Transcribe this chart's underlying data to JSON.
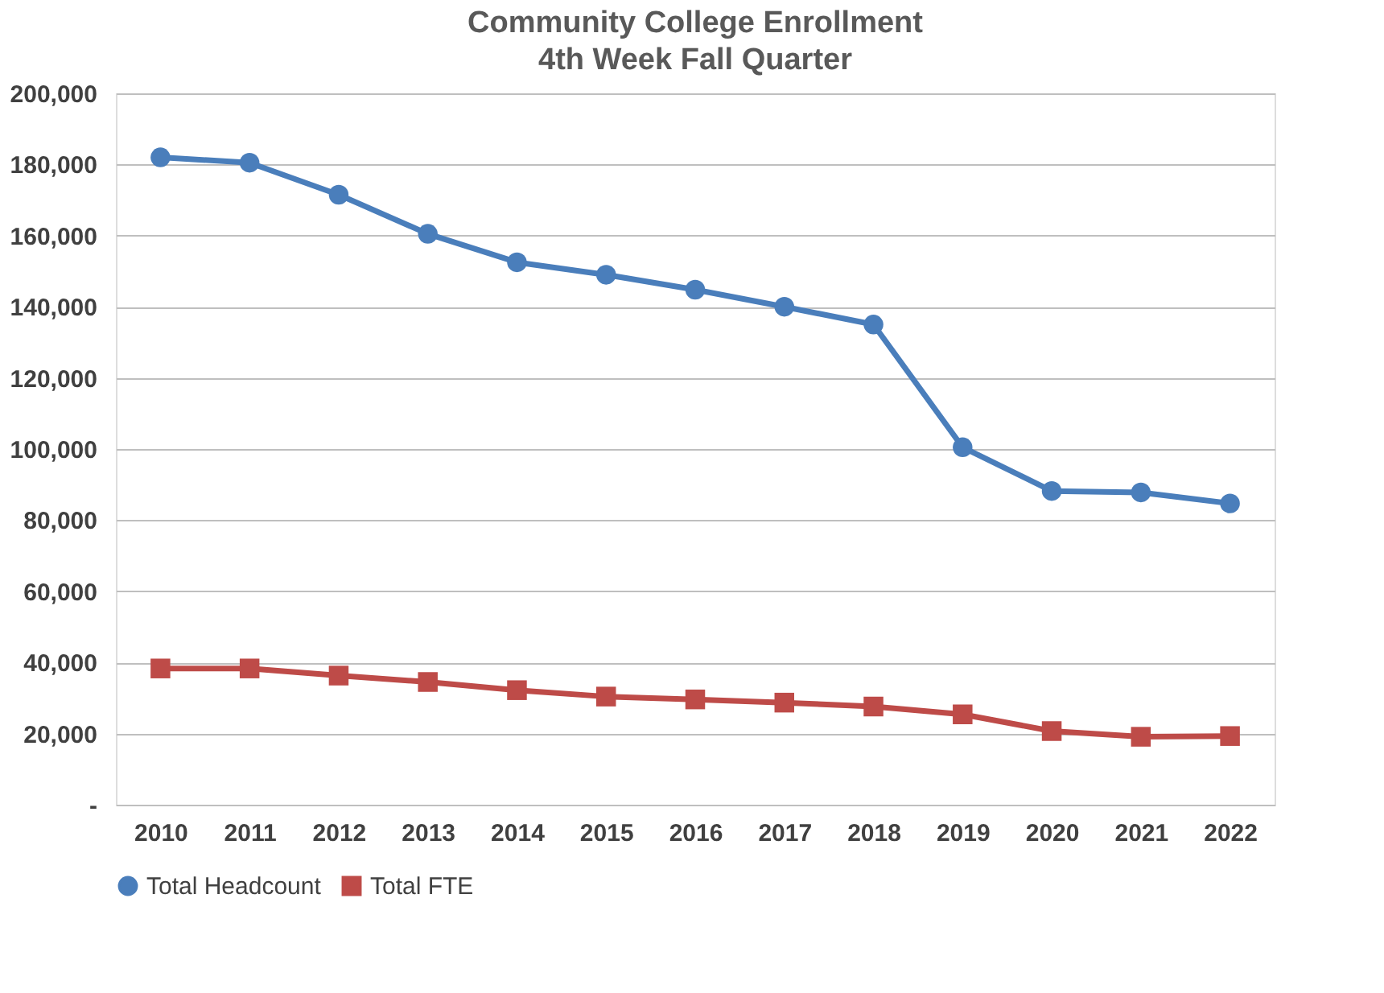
{
  "chart_data": {
    "type": "line",
    "title": "Community College Enrollment",
    "subtitle": "4th Week Fall Quarter",
    "categories": [
      "2010",
      "2011",
      "2012",
      "2013",
      "2014",
      "2015",
      "2016",
      "2017",
      "2018",
      "2019",
      "2020",
      "2021",
      "2022"
    ],
    "series": [
      {
        "name": "Total Headcount",
        "color": "#4a7ebb",
        "marker": "circle",
        "values": [
          182000,
          180500,
          171500,
          160500,
          152500,
          149000,
          144800,
          140000,
          135000,
          100500,
          88200,
          87800,
          84700
        ]
      },
      {
        "name": "Total FTE",
        "color": "#be4b48",
        "marker": "square",
        "values": [
          38300,
          38300,
          36300,
          34500,
          32200,
          30400,
          29600,
          28700,
          27600,
          25400,
          20700,
          19100,
          19300
        ]
      }
    ],
    "ylim": [
      0,
      200000
    ],
    "yticks": [
      {
        "value": 0,
        "label": "-"
      },
      {
        "value": 20000,
        "label": "20,000"
      },
      {
        "value": 40000,
        "label": "40,000"
      },
      {
        "value": 60000,
        "label": "60,000"
      },
      {
        "value": 80000,
        "label": "80,000"
      },
      {
        "value": 100000,
        "label": "100,000"
      },
      {
        "value": 120000,
        "label": "120,000"
      },
      {
        "value": 140000,
        "label": "140,000"
      },
      {
        "value": 160000,
        "label": "160,000"
      },
      {
        "value": 180000,
        "label": "180,000"
      },
      {
        "value": 200000,
        "label": "200,000"
      }
    ],
    "grid": "y",
    "legend": "bottom",
    "line_style": "solid"
  }
}
